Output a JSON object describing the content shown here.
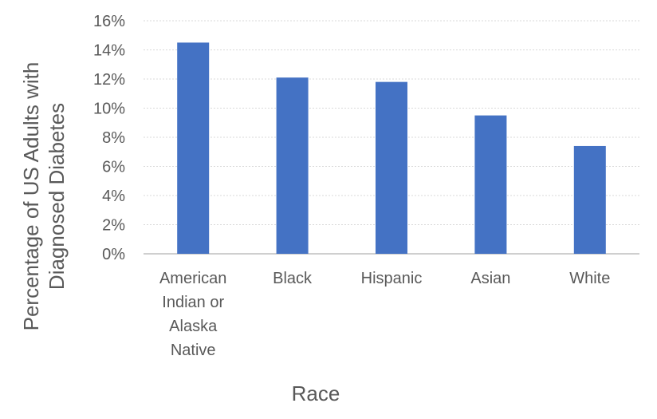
{
  "chart_data": {
    "type": "bar",
    "categories": [
      [
        "American",
        "Indian or",
        "Alaska",
        "Native"
      ],
      [
        "Black"
      ],
      [
        "Hispanic"
      ],
      [
        "Asian"
      ],
      [
        "White"
      ]
    ],
    "values": [
      14.5,
      12.1,
      11.8,
      9.5,
      7.4
    ],
    "ylim": [
      0,
      16
    ],
    "yticks": [
      0,
      2,
      4,
      6,
      8,
      10,
      12,
      14,
      16
    ],
    "ytick_format": "percent",
    "xlabel": "Race",
    "ylabel": [
      "Percentage of US Adults with",
      "Diagnosed Diabetes"
    ],
    "grid": true,
    "bar_color": "#4472c4"
  }
}
